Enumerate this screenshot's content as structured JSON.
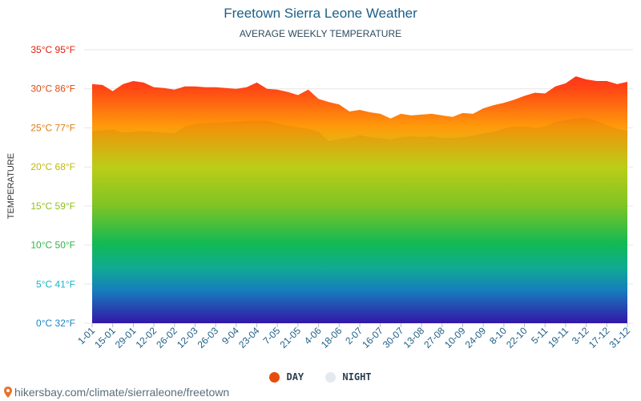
{
  "header": {
    "title": "Freetown Sierra Leone Weather",
    "subtitle": "AVERAGE WEEKLY TEMPERATURE"
  },
  "legend": {
    "day_label": "DAY",
    "night_label": "NIGHT",
    "day_color": "#e84c0c",
    "night_color": "#e4e9f0"
  },
  "source": {
    "text": "hikersbay.com/climate/sierraleone/freetown",
    "pin_color": "#e8712a"
  },
  "chart_data": {
    "type": "area",
    "title": "Freetown Sierra Leone Weather",
    "subtitle": "AVERAGE WEEKLY TEMPERATURE",
    "ylabel": "TEMPERATURE",
    "xlabel": "",
    "ylim": [
      0,
      35
    ],
    "grid": true,
    "legend_position": "bottom-center",
    "y_ticks": [
      {
        "value": 0,
        "label": "0°C 32°F",
        "color": "#1a86c4"
      },
      {
        "value": 5,
        "label": "5°C 41°F",
        "color": "#17b3c9"
      },
      {
        "value": 10,
        "label": "10°C 50°F",
        "color": "#34b34a"
      },
      {
        "value": 15,
        "label": "15°C 59°F",
        "color": "#8fbf1a"
      },
      {
        "value": 20,
        "label": "20°C 68°F",
        "color": "#c2b80e"
      },
      {
        "value": 25,
        "label": "25°C 77°F",
        "color": "#e07d10"
      },
      {
        "value": 30,
        "label": "30°C 86°F",
        "color": "#e04b0c"
      },
      {
        "value": 35,
        "label": "35°C 95°F",
        "color": "#e0200c"
      }
    ],
    "x_ticks": [
      "1-01",
      "15-01",
      "29-01",
      "12-02",
      "26-02",
      "12-03",
      "26-03",
      "9-04",
      "23-04",
      "7-05",
      "21-05",
      "4-06",
      "18-06",
      "2-07",
      "16-07",
      "30-07",
      "13-08",
      "27-08",
      "10-09",
      "24-09",
      "8-10",
      "22-10",
      "5-11",
      "19-11",
      "3-12",
      "17-12",
      "31-12"
    ],
    "series": [
      {
        "name": "DAY",
        "color": "#e84c0c",
        "values": [
          30.6,
          30.5,
          29.7,
          30.6,
          31.0,
          30.8,
          30.2,
          30.1,
          29.9,
          30.3,
          30.3,
          30.2,
          30.2,
          30.1,
          30.0,
          30.2,
          30.8,
          30.0,
          29.9,
          29.6,
          29.2,
          29.9,
          28.7,
          28.3,
          28.0,
          27.1,
          27.3,
          27.0,
          26.8,
          26.2,
          26.8,
          26.6,
          26.7,
          26.8,
          26.6,
          26.4,
          26.9,
          26.8,
          27.5,
          27.9,
          28.2,
          28.6,
          29.1,
          29.5,
          29.4,
          30.3,
          30.7,
          31.6,
          31.2,
          31.0,
          31.0,
          30.6,
          30.9
        ]
      },
      {
        "name": "NIGHT",
        "color": "#e4e9f0",
        "values": [
          24.6,
          24.7,
          24.8,
          24.4,
          24.5,
          24.6,
          24.5,
          24.4,
          24.3,
          25.2,
          25.5,
          25.6,
          25.7,
          25.7,
          25.8,
          25.9,
          25.9,
          25.9,
          25.6,
          25.3,
          25.1,
          24.9,
          24.5,
          23.3,
          23.6,
          23.7,
          24.1,
          23.8,
          23.7,
          23.5,
          23.8,
          23.9,
          23.8,
          23.9,
          23.7,
          23.7,
          23.8,
          24.0,
          24.3,
          24.5,
          24.9,
          25.2,
          25.2,
          25.0,
          25.2,
          25.8,
          26.0,
          26.2,
          26.3,
          25.9,
          25.4,
          24.9,
          24.6
        ]
      }
    ]
  }
}
